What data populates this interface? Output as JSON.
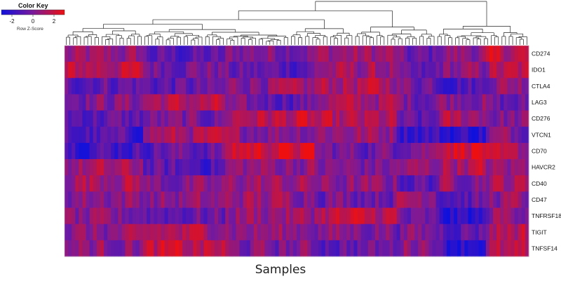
{
  "chart_data": {
    "type": "heatmap",
    "title": "",
    "xlabel": "Samples",
    "ylabel": "",
    "rows": [
      "CD274",
      "IDO1",
      "CTLA4",
      "LAG3",
      "CD276",
      "VTCN1",
      "CD70",
      "HAVCR2",
      "CD40",
      "CD47",
      "TNFRSF18",
      "TIGIT",
      "TNFSF14"
    ],
    "n_samples": 130,
    "value_range": [
      -3,
      3
    ],
    "column_dendrogram": true,
    "color_key": {
      "title": "Color Key",
      "ticks": [
        "-2",
        "0",
        "2"
      ],
      "tick_values": [
        -2,
        0,
        2
      ],
      "label": "Row Z-Score",
      "low_color": "#1010dd",
      "mid_color": "#7a1a9a",
      "high_color": "#ee1010"
    }
  }
}
